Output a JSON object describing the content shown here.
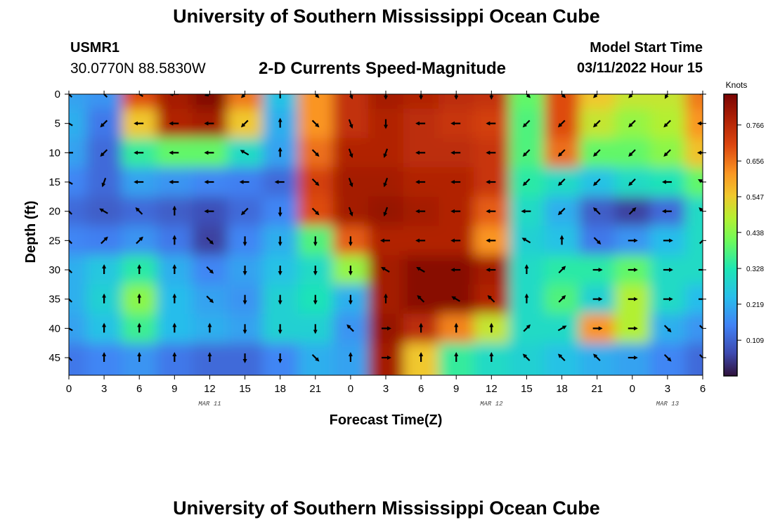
{
  "page": {
    "top_title": "University of Southern Mississippi Ocean Cube",
    "bottom_title": "University of Southern Mississippi Ocean Cube",
    "station_id": "USMR1",
    "station_coords": "30.0770N  88.5830W",
    "plot_title": "2-D Currents Speed-Magnitude",
    "model_start_label": "Model Start Time",
    "model_start_value": "03/11/2022 Hour 15"
  },
  "chart_data": {
    "type": "heatmap",
    "title": "2-D Currents Speed-Magnitude",
    "xlabel": "Forecast Time(Z)",
    "ylabel": "Depth (ft)",
    "x_hours_range": [
      0,
      54
    ],
    "ylim": [
      0,
      48
    ],
    "x_tick_hours": [
      0,
      3,
      6,
      9,
      12,
      15,
      18,
      21,
      24,
      27,
      30,
      33,
      36,
      39,
      42,
      45,
      48,
      51,
      54
    ],
    "x_tick_labels": [
      "0",
      "3",
      "6",
      "9",
      "12",
      "15",
      "18",
      "21",
      "0",
      "3",
      "6",
      "9",
      "12",
      "15",
      "18",
      "21",
      "0",
      "3",
      "6"
    ],
    "date_labels": [
      {
        "hour": 12,
        "text": "MAR 11"
      },
      {
        "hour": 36,
        "text": "MAR 12"
      },
      {
        "hour": 51,
        "text": "MAR 13"
      }
    ],
    "y_ticks": [
      0,
      5,
      10,
      15,
      20,
      25,
      30,
      35,
      40,
      45
    ],
    "colorbar": {
      "title": "Knots",
      "ticks": [
        0.109,
        0.219,
        0.328,
        0.438,
        0.547,
        0.656,
        0.766
      ],
      "range": [
        0.0,
        0.86
      ]
    },
    "depth_levels": [
      0,
      5,
      10,
      15,
      20,
      25,
      30,
      35,
      40,
      45
    ],
    "times_hours": [
      0,
      3,
      6,
      9,
      12,
      15,
      18,
      21,
      24,
      27,
      30,
      33,
      36,
      39,
      42,
      45,
      48,
      51,
      54
    ],
    "speed_knots": [
      [
        0.2,
        0.18,
        0.7,
        0.8,
        0.85,
        0.65,
        0.25,
        0.62,
        0.75,
        0.8,
        0.78,
        0.76,
        0.75,
        0.4,
        0.7,
        0.55,
        0.5,
        0.5,
        0.65
      ],
      [
        0.22,
        0.14,
        0.55,
        0.78,
        0.8,
        0.55,
        0.22,
        0.62,
        0.75,
        0.78,
        0.76,
        0.74,
        0.72,
        0.38,
        0.7,
        0.5,
        0.45,
        0.48,
        0.62
      ],
      [
        0.2,
        0.12,
        0.35,
        0.4,
        0.4,
        0.3,
        0.2,
        0.66,
        0.78,
        0.78,
        0.76,
        0.76,
        0.74,
        0.38,
        0.66,
        0.4,
        0.4,
        0.44,
        0.56
      ],
      [
        0.16,
        0.12,
        0.2,
        0.18,
        0.16,
        0.15,
        0.12,
        0.72,
        0.8,
        0.8,
        0.78,
        0.78,
        0.74,
        0.34,
        0.3,
        0.25,
        0.3,
        0.32,
        0.4
      ],
      [
        0.12,
        0.1,
        0.12,
        0.1,
        0.08,
        0.12,
        0.16,
        0.7,
        0.8,
        0.82,
        0.8,
        0.78,
        0.68,
        0.3,
        0.22,
        0.1,
        0.06,
        0.12,
        0.3
      ],
      [
        0.16,
        0.15,
        0.18,
        0.14,
        0.06,
        0.16,
        0.22,
        0.38,
        0.68,
        0.78,
        0.78,
        0.78,
        0.62,
        0.28,
        0.25,
        0.14,
        0.18,
        0.24,
        0.3
      ],
      [
        0.22,
        0.26,
        0.34,
        0.22,
        0.16,
        0.2,
        0.25,
        0.3,
        0.45,
        0.8,
        0.84,
        0.84,
        0.8,
        0.3,
        0.34,
        0.34,
        0.4,
        0.3,
        0.3
      ],
      [
        0.22,
        0.28,
        0.44,
        0.24,
        0.2,
        0.18,
        0.28,
        0.32,
        0.22,
        0.8,
        0.84,
        0.84,
        0.78,
        0.3,
        0.38,
        0.28,
        0.48,
        0.3,
        0.24
      ],
      [
        0.2,
        0.25,
        0.36,
        0.24,
        0.22,
        0.2,
        0.28,
        0.28,
        0.18,
        0.82,
        0.76,
        0.64,
        0.5,
        0.3,
        0.3,
        0.62,
        0.48,
        0.22,
        0.18
      ],
      [
        0.14,
        0.16,
        0.18,
        0.14,
        0.12,
        0.12,
        0.16,
        0.22,
        0.2,
        0.8,
        0.55,
        0.35,
        0.3,
        0.28,
        0.25,
        0.22,
        0.2,
        0.16,
        0.12
      ]
    ],
    "direction_deg": [
      [
        315,
        315,
        300,
        270,
        255,
        225,
        0,
        135,
        160,
        180,
        180,
        180,
        180,
        135,
        135,
        225,
        225,
        210,
        300
      ],
      [
        300,
        225,
        270,
        270,
        270,
        225,
        0,
        135,
        160,
        180,
        270,
        270,
        270,
        225,
        225,
        225,
        225,
        225,
        270
      ],
      [
        270,
        225,
        270,
        270,
        270,
        300,
        0,
        135,
        160,
        200,
        270,
        270,
        270,
        225,
        225,
        225,
        225,
        225,
        270
      ],
      [
        300,
        200,
        270,
        270,
        270,
        270,
        270,
        135,
        160,
        200,
        270,
        270,
        270,
        225,
        225,
        225,
        225,
        270,
        300
      ],
      [
        315,
        300,
        315,
        0,
        270,
        225,
        180,
        135,
        160,
        200,
        270,
        270,
        270,
        270,
        225,
        315,
        45,
        270,
        315
      ],
      [
        315,
        45,
        45,
        0,
        135,
        180,
        180,
        180,
        180,
        270,
        270,
        270,
        270,
        300,
        0,
        135,
        90,
        90,
        45
      ],
      [
        315,
        0,
        0,
        0,
        135,
        180,
        180,
        180,
        180,
        300,
        300,
        270,
        270,
        0,
        45,
        90,
        90,
        90,
        90
      ],
      [
        315,
        0,
        0,
        0,
        135,
        180,
        180,
        180,
        180,
        0,
        315,
        300,
        315,
        0,
        45,
        90,
        90,
        90,
        90
      ],
      [
        300,
        0,
        0,
        0,
        0,
        180,
        180,
        180,
        315,
        90,
        0,
        0,
        0,
        45,
        60,
        90,
        90,
        135,
        135
      ],
      [
        315,
        0,
        0,
        0,
        0,
        180,
        180,
        135,
        0,
        90,
        0,
        0,
        0,
        315,
        315,
        315,
        90,
        135,
        135
      ]
    ]
  }
}
